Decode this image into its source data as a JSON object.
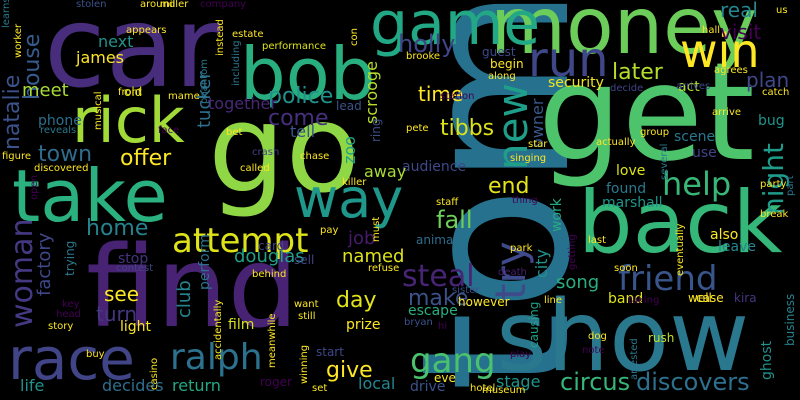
{
  "words": [
    {
      "text": "tom",
      "color": "#26718e"
    },
    {
      "text": "get",
      "color": "#4dc36b"
    },
    {
      "text": "go",
      "color": "#8fd744"
    },
    {
      "text": "find",
      "color": "#482373"
    },
    {
      "text": "car",
      "color": "#472d7b"
    },
    {
      "text": "show",
      "color": "#2a788e"
    },
    {
      "text": "back",
      "color": "#35b779"
    },
    {
      "text": "money",
      "color": "#6ccd5a"
    },
    {
      "text": "bob",
      "color": "#29af7f"
    },
    {
      "text": "take",
      "color": "#2bb07f"
    },
    {
      "text": "rick",
      "color": "#a2da37"
    },
    {
      "text": "game",
      "color": "#22a884"
    },
    {
      "text": "run",
      "color": "#3f4788"
    },
    {
      "text": "race",
      "color": "#414487"
    },
    {
      "text": "way",
      "color": "#1f988b"
    },
    {
      "text": "win",
      "color": "#fde725"
    },
    {
      "text": "new",
      "color": "#1f9e89"
    },
    {
      "text": "try",
      "color": "#3e4a89"
    },
    {
      "text": "friend",
      "color": "#39568c"
    },
    {
      "text": "attempt",
      "color": "#dde318"
    },
    {
      "text": "ralph",
      "color": "#2c728e"
    },
    {
      "text": "help",
      "color": "#37b878"
    },
    {
      "text": "woman",
      "color": "#443983"
    },
    {
      "text": "night",
      "color": "#1e9b8a"
    },
    {
      "text": "gang",
      "color": "#4ac16d"
    },
    {
      "text": "steal",
      "color": "#482475"
    },
    {
      "text": "circus",
      "color": "#35b779"
    },
    {
      "text": "discovers",
      "color": "#2c718e"
    },
    {
      "text": "come",
      "color": "#46307e"
    },
    {
      "text": "police",
      "color": "#21918c"
    },
    {
      "text": "holly",
      "color": "#404588"
    },
    {
      "text": "house",
      "color": "#365c8d"
    },
    {
      "text": "natalie",
      "color": "#3b528b"
    },
    {
      "text": "later",
      "color": "#b5de2b"
    },
    {
      "text": "real",
      "color": "#24868e"
    },
    {
      "text": "visit",
      "color": "#440154"
    },
    {
      "text": "plan",
      "color": "#3f4889"
    },
    {
      "text": "tibbs",
      "color": "#dde318"
    },
    {
      "text": "time",
      "color": "#fde725"
    },
    {
      "text": "offer",
      "color": "#fde725"
    },
    {
      "text": "town",
      "color": "#2f6c8e"
    },
    {
      "text": "end",
      "color": "#e5e419"
    },
    {
      "text": "fall",
      "color": "#6ece58"
    },
    {
      "text": "make",
      "color": "#3b528b"
    },
    {
      "text": "day",
      "color": "#e2e418"
    },
    {
      "text": "home",
      "color": "#26828e"
    },
    {
      "text": "see",
      "color": "#fde725"
    },
    {
      "text": "turn",
      "color": "#453781"
    },
    {
      "text": "douglas",
      "color": "#1f9f88"
    },
    {
      "text": "job",
      "color": "#481a6c"
    },
    {
      "text": "named",
      "color": "#dde318"
    },
    {
      "text": "give",
      "color": "#fde725"
    },
    {
      "text": "song",
      "color": "#28ae80"
    },
    {
      "text": "factory",
      "color": "#3f4788"
    },
    {
      "text": "club",
      "color": "#25858e"
    },
    {
      "text": "tucker",
      "color": "#2e6f8e"
    },
    {
      "text": "together",
      "color": "#482878"
    },
    {
      "text": "tell",
      "color": "#3b528b"
    },
    {
      "text": "meet",
      "color": "#a8db34"
    },
    {
      "text": "next",
      "color": "#20928c"
    },
    {
      "text": "james",
      "color": "#fde725"
    },
    {
      "text": "phone",
      "color": "#2e6e8e"
    },
    {
      "text": "zoo",
      "color": "#1fa088"
    },
    {
      "text": "scrooge",
      "color": "#b8de29"
    },
    {
      "text": "owner",
      "color": "#38588c"
    },
    {
      "text": "security",
      "color": "#f1e51d"
    },
    {
      "text": "act",
      "color": "#b0dd2f"
    },
    {
      "text": "audience",
      "color": "#3f4889"
    },
    {
      "text": "away",
      "color": "#a8db34"
    },
    {
      "text": "love",
      "color": "#dde318"
    },
    {
      "text": "found",
      "color": "#2a788e"
    },
    {
      "text": "marshall",
      "color": "#1f968b"
    },
    {
      "text": "work",
      "color": "#25ab82"
    },
    {
      "text": "city",
      "color": "#20938c"
    },
    {
      "text": "scene",
      "color": "#2a788e"
    },
    {
      "text": "use",
      "color": "#414487"
    },
    {
      "text": "also",
      "color": "#fde725"
    },
    {
      "text": "leave",
      "color": "#24878e"
    },
    {
      "text": "band",
      "color": "#dde318"
    },
    {
      "text": "well",
      "color": "#fde725"
    },
    {
      "text": "case",
      "color": "#fde725"
    },
    {
      "text": "kira",
      "color": "#453581"
    },
    {
      "text": "business",
      "color": "#26818e"
    },
    {
      "text": "ghost",
      "color": "#21918c"
    },
    {
      "text": "however",
      "color": "#fde725"
    },
    {
      "text": "escape",
      "color": "#29af7f"
    },
    {
      "text": "prize",
      "color": "#fde725"
    },
    {
      "text": "local",
      "color": "#24868e"
    },
    {
      "text": "return",
      "color": "#22a884"
    },
    {
      "text": "film",
      "color": "#d8e219"
    },
    {
      "text": "decides",
      "color": "#2e6e8e"
    },
    {
      "text": "life",
      "color": "#21918c"
    },
    {
      "text": "stage",
      "color": "#1f948c"
    },
    {
      "text": "drive",
      "color": "#3b528b"
    },
    {
      "text": "light",
      "color": "#fde725"
    },
    {
      "text": "eve",
      "color": "#fde725"
    },
    {
      "text": "start",
      "color": "#3f4889"
    },
    {
      "text": "roger",
      "color": "#440154"
    },
    {
      "text": "causing",
      "color": "#1fa188"
    },
    {
      "text": "rush",
      "color": "#c0df25"
    },
    {
      "text": "stop",
      "color": "#46337f"
    },
    {
      "text": "bug",
      "color": "#1f948c"
    },
    {
      "text": "perform",
      "color": "#2c728e"
    },
    {
      "text": "ring",
      "color": "#3d4e8a"
    },
    {
      "text": "lead",
      "color": "#3b528b"
    },
    {
      "text": "old",
      "color": "#dde318"
    },
    {
      "text": "guest",
      "color": "#3e4989"
    },
    {
      "text": "begin",
      "color": "#fde725"
    },
    {
      "text": "killer",
      "color": "#fde725"
    },
    {
      "text": "staff",
      "color": "#fde725"
    },
    {
      "text": "card",
      "color": "#414487"
    },
    {
      "text": "sell",
      "color": "#414487"
    },
    {
      "text": "animal",
      "color": "#2e6e8e"
    },
    {
      "text": "death",
      "color": "#481f70"
    },
    {
      "text": "sister",
      "color": "#3b528b"
    },
    {
      "text": "bryan",
      "color": "#3b528b"
    },
    {
      "text": "trying",
      "color": "#2a788e"
    },
    {
      "text": "contest",
      "color": "#404588"
    },
    {
      "text": "meanwhile",
      "color": "#fde725"
    },
    {
      "text": "hotel",
      "color": "#fde725"
    },
    {
      "text": "dog",
      "color": "#fde725"
    },
    {
      "text": "arrives",
      "color": "#3e4a89"
    },
    {
      "text": "decide",
      "color": "#414487"
    },
    {
      "text": "catch",
      "color": "#fde725"
    },
    {
      "text": "learns",
      "color": "#2a788e"
    },
    {
      "text": "worker",
      "color": "#fde725"
    },
    {
      "text": "stolen",
      "color": "#3b528b"
    },
    {
      "text": "around",
      "color": "#fde725"
    },
    {
      "text": "company",
      "color": "#440154"
    },
    {
      "text": "appears",
      "color": "#fde725"
    },
    {
      "text": "phantom",
      "color": "#2a788e"
    },
    {
      "text": "estate",
      "color": "#fde725"
    },
    {
      "text": "performance",
      "color": "#dde318"
    },
    {
      "text": "brooke",
      "color": "#fde725"
    },
    {
      "text": "mame",
      "color": "#fde725"
    },
    {
      "text": "front",
      "color": "#fde725"
    },
    {
      "text": "musical",
      "color": "#fde725"
    },
    {
      "text": "reveals",
      "color": "#2a788e"
    },
    {
      "text": "face",
      "color": "#440154"
    },
    {
      "text": "bet",
      "color": "#fde725"
    },
    {
      "text": "crash",
      "color": "#414487"
    },
    {
      "text": "called",
      "color": "#fde725"
    },
    {
      "text": "chase",
      "color": "#fde725"
    },
    {
      "text": "pete",
      "color": "#fde725"
    },
    {
      "text": "star",
      "color": "#fde725"
    },
    {
      "text": "singing",
      "color": "#fde725"
    },
    {
      "text": "actually",
      "color": "#fde725"
    },
    {
      "text": "group",
      "color": "#fde725"
    },
    {
      "text": "arrive",
      "color": "#fde725"
    },
    {
      "text": "hall",
      "color": "#fde725"
    },
    {
      "text": "figure",
      "color": "#fde725"
    },
    {
      "text": "discovered",
      "color": "#fde725"
    },
    {
      "text": "open",
      "color": "#440154"
    },
    {
      "text": "including",
      "color": "#2a788e"
    },
    {
      "text": "instead",
      "color": "#fde725"
    },
    {
      "text": "miller",
      "color": "#fde725"
    },
    {
      "text": "con",
      "color": "#fde725"
    },
    {
      "text": "along",
      "color": "#fde725"
    },
    {
      "text": "station",
      "color": "#440154"
    },
    {
      "text": "agrees",
      "color": "#fde725"
    },
    {
      "text": "party",
      "color": "#fde725"
    },
    {
      "text": "break",
      "color": "#fde725"
    },
    {
      "text": "part",
      "color": "#2a788e"
    },
    {
      "text": "us",
      "color": "#fde725"
    },
    {
      "text": "several",
      "color": "#2a788e"
    },
    {
      "text": "eventually",
      "color": "#fde725"
    },
    {
      "text": "thing",
      "color": "#440154"
    },
    {
      "text": "park",
      "color": "#fde725"
    },
    {
      "text": "last",
      "color": "#fde725"
    },
    {
      "text": "soon",
      "color": "#fde725"
    },
    {
      "text": "getting",
      "color": "#440154"
    },
    {
      "text": "taking",
      "color": "#440154"
    },
    {
      "text": "line",
      "color": "#fde725"
    },
    {
      "text": "must",
      "color": "#fde725"
    },
    {
      "text": "refuse",
      "color": "#fde725"
    },
    {
      "text": "pay",
      "color": "#fde725"
    },
    {
      "text": "behind",
      "color": "#fde725"
    },
    {
      "text": "want",
      "color": "#fde725"
    },
    {
      "text": "still",
      "color": "#fde725"
    },
    {
      "text": "story",
      "color": "#fde725"
    },
    {
      "text": "head",
      "color": "#440154"
    },
    {
      "text": "key",
      "color": "#440154"
    },
    {
      "text": "accidentally",
      "color": "#fde725"
    },
    {
      "text": "buy",
      "color": "#fde725"
    },
    {
      "text": "casino",
      "color": "#fde725"
    },
    {
      "text": "winning",
      "color": "#fde725"
    },
    {
      "text": "set",
      "color": "#fde725"
    },
    {
      "text": "hi",
      "color": "#440154"
    },
    {
      "text": "play",
      "color": "#440154"
    },
    {
      "text": "note",
      "color": "#440154"
    },
    {
      "text": "arrested",
      "color": "#2a788e"
    },
    {
      "text": "museum",
      "color": "#fde725"
    }
  ]
}
